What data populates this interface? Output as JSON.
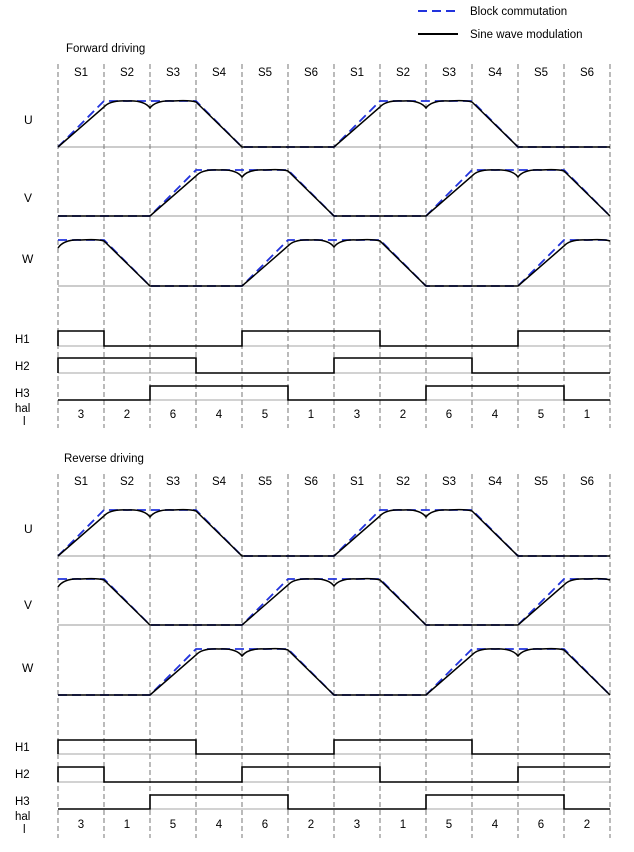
{
  "legend": {
    "block_label": "Block commutation",
    "sine_label": "Sine wave modulation",
    "block_color": "#2233dd",
    "sine_color": "#000000"
  },
  "panels": [
    {
      "id": "forward",
      "title": "Forward driving",
      "sectors": [
        "S1",
        "S2",
        "S3",
        "S4",
        "S5",
        "S6",
        "S1",
        "S2",
        "S3",
        "S4",
        "S5",
        "S6"
      ],
      "phases": [
        {
          "label": "U",
          "levels": [
            "r",
            "H",
            "H",
            "f",
            "L",
            "L",
            "r",
            "H",
            "H",
            "f",
            "L",
            "L"
          ]
        },
        {
          "label": "V",
          "levels": [
            "L",
            "L",
            "r",
            "H",
            "H",
            "f",
            "L",
            "L",
            "r",
            "H",
            "H",
            "f"
          ]
        },
        {
          "label": "W",
          "levels": [
            "H",
            "f",
            "L",
            "L",
            "r",
            "H",
            "H",
            "f",
            "L",
            "L",
            "r",
            "H"
          ]
        }
      ],
      "hall": [
        {
          "label": "H1",
          "bits": [
            1,
            0,
            0,
            0,
            1,
            1,
            1,
            0,
            0,
            0,
            1,
            1
          ]
        },
        {
          "label": "H2",
          "bits": [
            1,
            1,
            1,
            0,
            0,
            0,
            1,
            1,
            1,
            0,
            0,
            0
          ]
        },
        {
          "label": "H3",
          "bits": [
            0,
            0,
            1,
            1,
            1,
            0,
            0,
            0,
            1,
            1,
            1,
            0
          ]
        }
      ],
      "hall_label": "hal\nl",
      "hall_codes": [
        "3",
        "2",
        "6",
        "4",
        "5",
        "1",
        "3",
        "2",
        "6",
        "4",
        "5",
        "1"
      ]
    },
    {
      "id": "reverse",
      "title": "Reverse driving",
      "sectors": [
        "S1",
        "S2",
        "S3",
        "S4",
        "S5",
        "S6",
        "S1",
        "S2",
        "S3",
        "S4",
        "S5",
        "S6"
      ],
      "phases": [
        {
          "label": "U",
          "levels": [
            "r",
            "H",
            "H",
            "f",
            "L",
            "L",
            "r",
            "H",
            "H",
            "f",
            "L",
            "L"
          ]
        },
        {
          "label": "V",
          "levels": [
            "H",
            "f",
            "L",
            "L",
            "r",
            "H",
            "H",
            "f",
            "L",
            "L",
            "r",
            "H"
          ]
        },
        {
          "label": "W",
          "levels": [
            "L",
            "L",
            "r",
            "H",
            "H",
            "f",
            "L",
            "L",
            "r",
            "H",
            "H",
            "f"
          ]
        }
      ],
      "hall": [
        {
          "label": "H1",
          "bits": [
            1,
            1,
            1,
            0,
            0,
            0,
            1,
            1,
            1,
            0,
            0,
            0
          ]
        },
        {
          "label": "H2",
          "bits": [
            1,
            0,
            0,
            0,
            1,
            1,
            1,
            0,
            0,
            0,
            1,
            1
          ]
        },
        {
          "label": "H3",
          "bits": [
            0,
            0,
            1,
            1,
            1,
            0,
            0,
            0,
            1,
            1,
            1,
            0
          ]
        }
      ],
      "hall_label": "hal\nl",
      "hall_codes": [
        "3",
        "1",
        "5",
        "4",
        "6",
        "2",
        "3",
        "1",
        "5",
        "4",
        "6",
        "2"
      ]
    }
  ]
}
